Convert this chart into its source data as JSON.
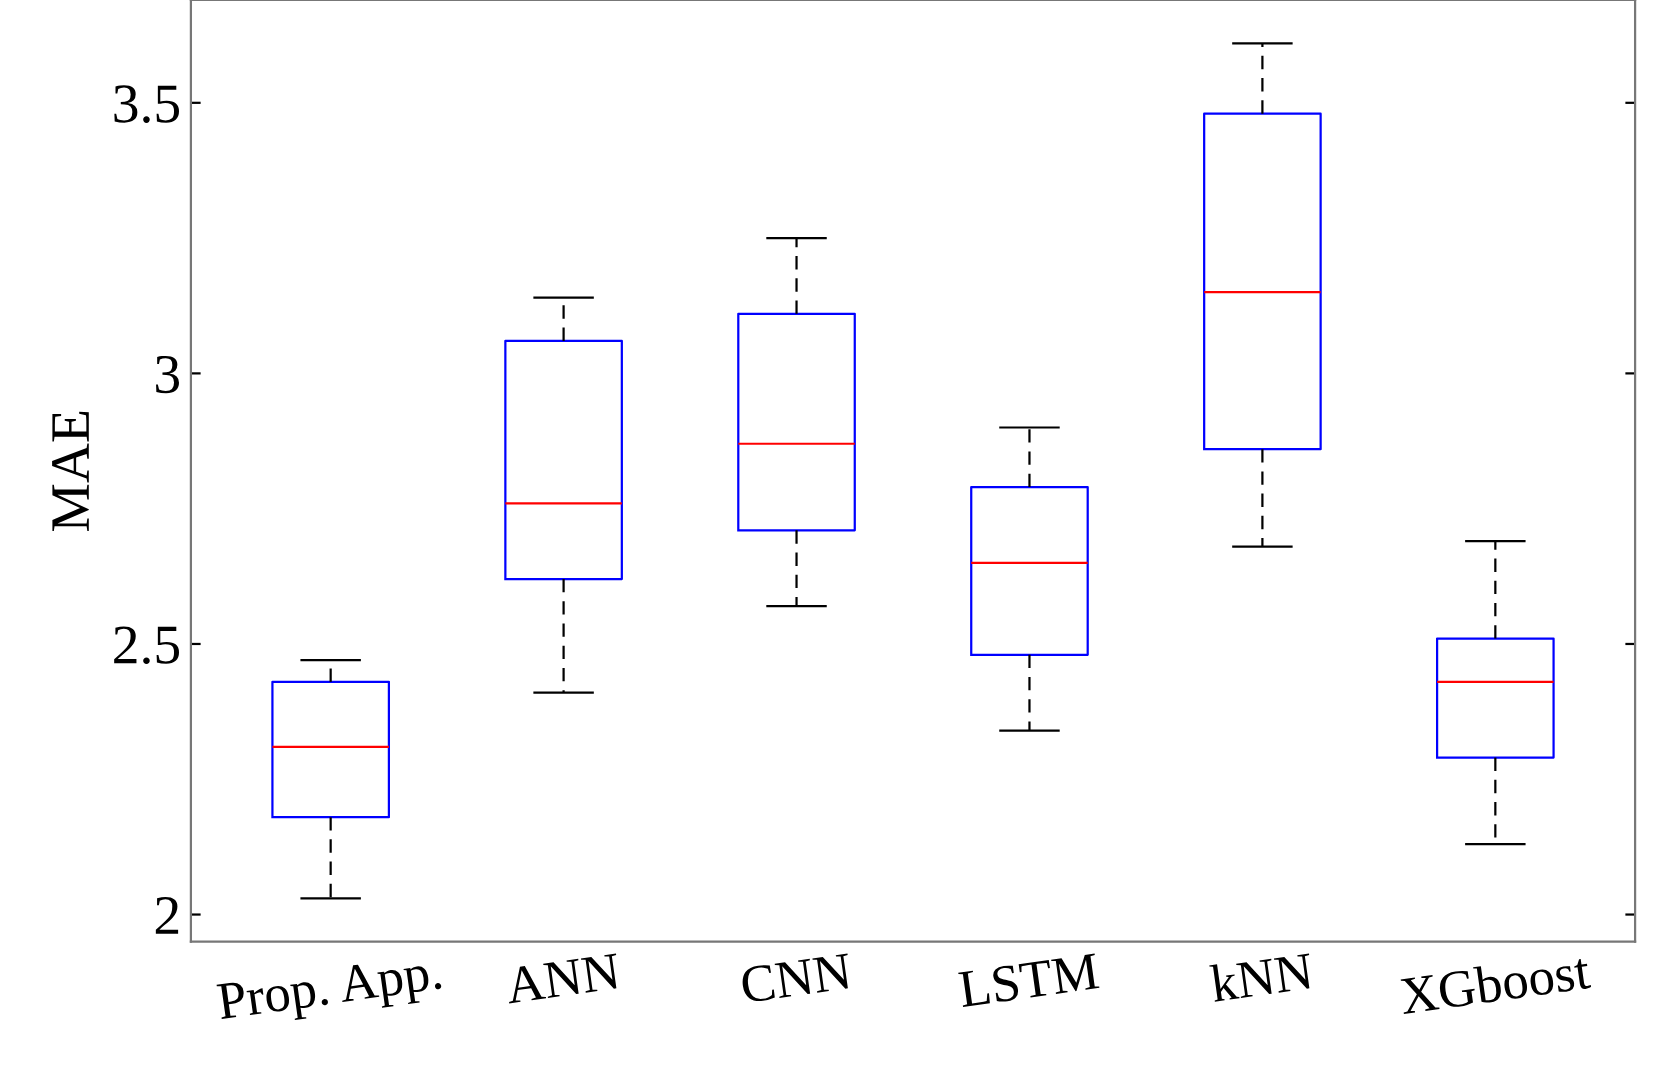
{
  "chart_data": {
    "type": "box",
    "ylabel": "MAE",
    "categories": [
      "Prop. App.",
      "ANN",
      "CNN",
      "LSTM",
      "kNN",
      "XGboost"
    ],
    "boxes": [
      {
        "low": 2.03,
        "q1": 2.18,
        "median": 2.31,
        "q3": 2.43,
        "high": 2.47
      },
      {
        "low": 2.41,
        "q1": 2.62,
        "median": 2.76,
        "q3": 3.06,
        "high": 3.14
      },
      {
        "low": 2.57,
        "q1": 2.71,
        "median": 2.87,
        "q3": 3.11,
        "high": 3.25
      },
      {
        "low": 2.34,
        "q1": 2.48,
        "median": 2.65,
        "q3": 2.79,
        "high": 2.9
      },
      {
        "low": 2.68,
        "q1": 2.86,
        "median": 3.15,
        "q3": 3.48,
        "high": 3.61
      },
      {
        "low": 2.13,
        "q1": 2.29,
        "median": 2.43,
        "q3": 2.51,
        "high": 2.69
      }
    ],
    "color": "#0000ff",
    "ylim": [
      1.95,
      3.69
    ],
    "yticks": [
      2,
      2.5,
      3,
      3.5
    ],
    "grid": false
  }
}
